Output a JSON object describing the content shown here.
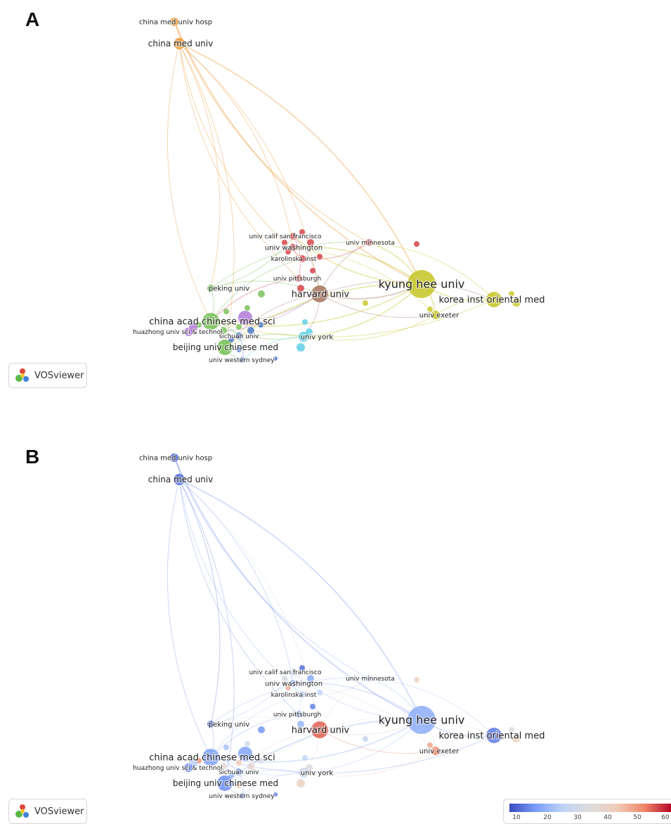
{
  "panels": {
    "a": {
      "letter": "A"
    },
    "b": {
      "letter": "B"
    }
  },
  "badge": {
    "label": "VOSviewer",
    "icon": "vosviewer-logo-icon"
  },
  "scale": {
    "ticks": [
      "10",
      "20",
      "30",
      "40",
      "50",
      "60"
    ]
  },
  "network": {
    "clusters": {
      "red": "#d6434b",
      "yellow": "#c9c930",
      "green": "#7ac25a",
      "purple": "#b07ad8",
      "blue": "#4f79c8",
      "cyan": "#5fd0e6",
      "orange": "#ec9a3c",
      "brown": "#a97a66"
    },
    "nodes": [
      {
        "id": "cmuh",
        "label": "china med univ hosp",
        "cluster": "orange",
        "size": 6,
        "avg_year": 10
      },
      {
        "id": "cmu",
        "label": "china med univ",
        "cluster": "orange",
        "size": 8,
        "avg_year": 12
      },
      {
        "id": "ucsf",
        "label": "univ calif san francisco",
        "cluster": "red",
        "size": 5,
        "avg_year": 30
      },
      {
        "id": "uw",
        "label": "univ washington",
        "cluster": "red",
        "size": 5,
        "avg_year": 22
      },
      {
        "id": "ki",
        "label": "karolinska inst",
        "cluster": "red",
        "size": 5,
        "avg_year": 26
      },
      {
        "id": "umn",
        "label": "univ minnesota",
        "cluster": "red",
        "size": 5,
        "avg_year": 28
      },
      {
        "id": "pitt",
        "label": "univ pittsburgh",
        "cluster": "red",
        "size": 5,
        "avg_year": 18
      },
      {
        "id": "harvard",
        "label": "harvard univ",
        "cluster": "brown",
        "size": 12,
        "avg_year": 55
      },
      {
        "id": "khu",
        "label": "kyung hee univ",
        "cluster": "yellow",
        "size": 20,
        "avg_year": 20
      },
      {
        "id": "kiom",
        "label": "korea inst oriental med",
        "cluster": "yellow",
        "size": 11,
        "avg_year": 14
      },
      {
        "id": "exeter",
        "label": "univ exeter",
        "cluster": "yellow",
        "size": 6,
        "avg_year": 52
      },
      {
        "id": "peking",
        "label": "peking univ",
        "cluster": "green",
        "size": 5,
        "avg_year": 12
      },
      {
        "id": "cacms",
        "label": "china acad chinese med sci",
        "cluster": "green",
        "size": 12,
        "avg_year": 18
      },
      {
        "id": "huazhong",
        "label": "huazhong univ sci & technol",
        "cluster": "purple",
        "size": 6,
        "avg_year": 15
      },
      {
        "id": "sichuan",
        "label": "sichuan univ",
        "cluster": "blue",
        "size": 5,
        "avg_year": 16
      },
      {
        "id": "bucm",
        "label": "beijing univ chinese med",
        "cluster": "green",
        "size": 11,
        "avg_year": 16
      },
      {
        "id": "uws",
        "label": "univ western sydney",
        "cluster": "blue",
        "size": 4,
        "avg_year": 14
      },
      {
        "id": "york",
        "label": "univ york",
        "cluster": "cyan",
        "size": 7,
        "avg_year": 30
      }
    ]
  }
}
